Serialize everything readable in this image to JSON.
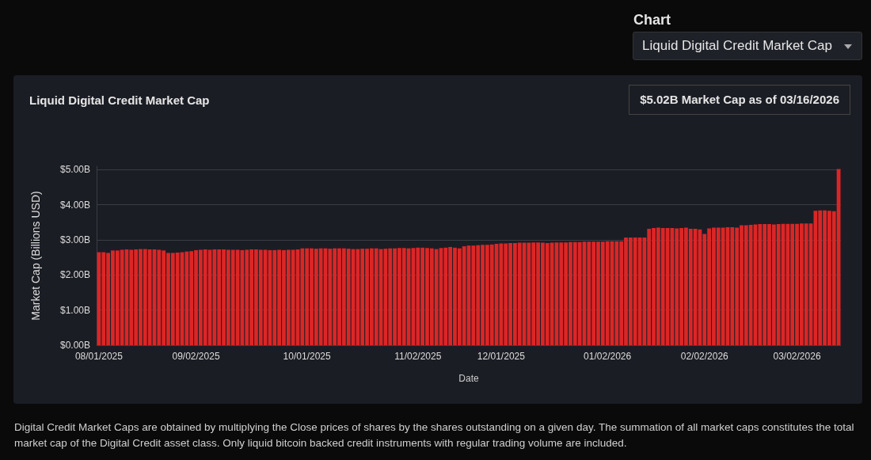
{
  "chart_data": {
    "type": "bar",
    "title": "Liquid Digital Credit Market Cap",
    "xlabel": "Date",
    "ylabel": "Market Cap (Billions USD)",
    "categories": [
      "08/01/2025",
      null,
      null,
      null,
      null,
      null,
      null,
      null,
      null,
      null,
      null,
      null,
      null,
      null,
      null,
      null,
      null,
      null,
      null,
      null,
      null,
      "09/02/2025",
      null,
      null,
      null,
      null,
      null,
      null,
      null,
      null,
      null,
      null,
      null,
      null,
      null,
      null,
      null,
      null,
      null,
      null,
      null,
      null,
      null,
      null,
      null,
      "10/01/2025",
      null,
      null,
      null,
      null,
      null,
      null,
      null,
      null,
      null,
      null,
      null,
      null,
      null,
      null,
      null,
      null,
      null,
      null,
      null,
      null,
      null,
      null,
      null,
      "11/02/2025",
      null,
      null,
      null,
      null,
      null,
      null,
      null,
      null,
      null,
      null,
      null,
      null,
      null,
      null,
      null,
      null,
      null,
      "12/01/2025",
      null,
      null,
      null,
      null,
      null,
      null,
      null,
      null,
      null,
      null,
      null,
      null,
      null,
      null,
      null,
      null,
      null,
      null,
      null,
      null,
      null,
      null,
      "01/02/2026",
      null,
      null,
      null,
      null,
      null,
      null,
      null,
      null,
      null,
      null,
      null,
      null,
      null,
      null,
      null,
      null,
      null,
      null,
      null,
      null,
      "02/02/2026",
      null,
      null,
      null,
      null,
      null,
      null,
      null,
      null,
      null,
      null,
      null,
      null,
      null,
      null,
      null,
      null,
      null,
      null,
      null,
      "03/02/2026",
      null,
      null,
      null,
      null,
      null,
      null,
      null,
      null,
      null
    ],
    "series": [
      {
        "color": "#dc2626",
        "values": [
          2.65,
          2.65,
          2.63,
          2.7,
          2.7,
          2.72,
          2.73,
          2.72,
          2.73,
          2.74,
          2.74,
          2.73,
          2.73,
          2.72,
          2.7,
          2.63,
          2.63,
          2.64,
          2.65,
          2.67,
          2.68,
          2.71,
          2.72,
          2.73,
          2.72,
          2.73,
          2.73,
          2.73,
          2.72,
          2.72,
          2.72,
          2.71,
          2.72,
          2.73,
          2.73,
          2.72,
          2.72,
          2.71,
          2.71,
          2.72,
          2.71,
          2.72,
          2.72,
          2.73,
          2.76,
          2.76,
          2.76,
          2.75,
          2.76,
          2.76,
          2.75,
          2.76,
          2.76,
          2.76,
          2.75,
          2.74,
          2.74,
          2.75,
          2.75,
          2.76,
          2.76,
          2.74,
          2.75,
          2.76,
          2.76,
          2.77,
          2.77,
          2.76,
          2.77,
          2.78,
          2.78,
          2.77,
          2.76,
          2.74,
          2.77,
          2.78,
          2.8,
          2.78,
          2.76,
          2.82,
          2.84,
          2.84,
          2.85,
          2.86,
          2.86,
          2.87,
          2.89,
          2.9,
          2.9,
          2.91,
          2.91,
          2.92,
          2.92,
          2.92,
          2.93,
          2.93,
          2.92,
          2.91,
          2.92,
          2.93,
          2.93,
          2.93,
          2.94,
          2.94,
          2.94,
          2.95,
          2.95,
          2.95,
          2.95,
          2.95,
          2.96,
          2.96,
          2.96,
          2.96,
          3.07,
          3.07,
          3.07,
          3.07,
          3.07,
          3.32,
          3.34,
          3.35,
          3.34,
          3.34,
          3.34,
          3.33,
          3.34,
          3.35,
          3.32,
          3.32,
          3.3,
          3.17,
          3.33,
          3.35,
          3.35,
          3.35,
          3.36,
          3.36,
          3.35,
          3.42,
          3.42,
          3.43,
          3.44,
          3.45,
          3.45,
          3.45,
          3.44,
          3.45,
          3.46,
          3.46,
          3.46,
          3.46,
          3.47,
          3.47,
          3.47,
          3.83,
          3.84,
          3.84,
          3.83,
          3.82,
          5.02
        ]
      }
    ],
    "ylim": [
      0,
      5.1
    ],
    "yticks": [
      {
        "value": 0,
        "label": "$0.00B"
      },
      {
        "value": 1,
        "label": "$1.00B"
      },
      {
        "value": 2,
        "label": "$2.00B"
      },
      {
        "value": 3,
        "label": "$3.00B"
      },
      {
        "value": 4,
        "label": "$4.00B"
      },
      {
        "value": 5,
        "label": "$5.00B"
      }
    ],
    "grid": "y",
    "annotations": [
      "Chart",
      "Liquid Digital Credit Market Cap",
      "$5.02B Market Cap as of 03/16/2026",
      "Digital Credit Market Caps are obtained by multiplying the Close prices of shares by the shares outstanding on a given day. The summation of all market caps constitutes the total market cap of the Digital Credit asset class. Only liquid bitcoin backed credit instruments with regular trading volume are included."
    ]
  }
}
